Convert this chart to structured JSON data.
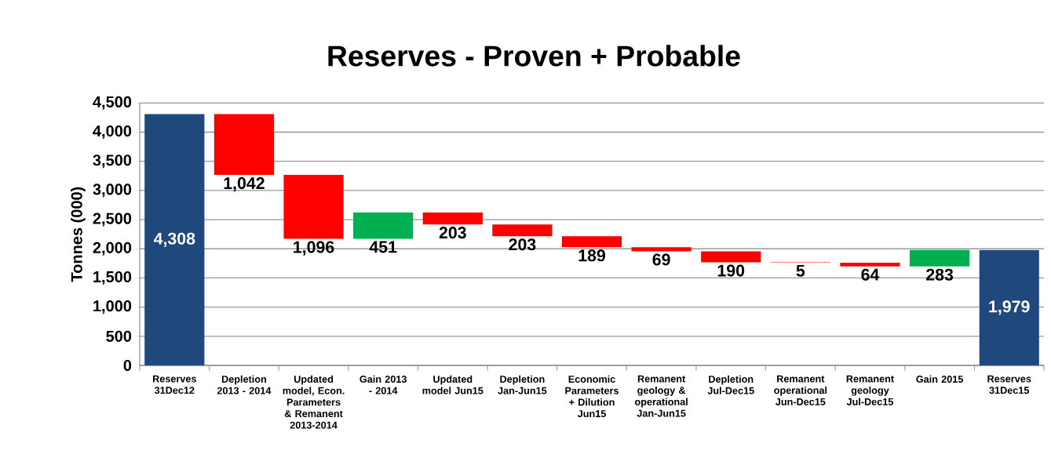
{
  "chart_data": {
    "type": "bar",
    "title": "Reserves - Proven + Probable",
    "ylabel": "Tonnes (000)",
    "categories": [
      "Reserves 31Dec12",
      "Depletion 2013 - 2014",
      "Updated model, Econ. Parameters & Remanent 2013-2014",
      "Gain 2013 - 2014",
      "Updated model Jun15",
      "Depletion Jan-Jun15",
      "Economic Parameters + Dilution Jun15",
      "Remanent geology & operational Jan-Jun15",
      "Depletion Jul-Dec15",
      "Remanent operational Jun-Dec15",
      "Remanent geology Jul-Dec15",
      "Gain 2015",
      "Reserves 31Dec15"
    ],
    "values": [
      4308,
      -1042,
      -1096,
      451,
      -203,
      -203,
      -189,
      -69,
      -190,
      -5,
      -64,
      283,
      1979
    ],
    "base": [
      0,
      4308,
      3266,
      2170,
      2621,
      2418,
      2215,
      2026,
      1957,
      1767,
      1762,
      1698,
      0
    ],
    "value_labels": [
      "4,308",
      "1,042",
      "1,096",
      "451",
      "203",
      "203",
      "189",
      "69",
      "190",
      "5",
      "64",
      "283",
      "1,979"
    ],
    "colors": [
      "#1f497d",
      "#ff0000",
      "#ff0000",
      "#00b050",
      "#ff0000",
      "#ff0000",
      "#ff0000",
      "#ff0000",
      "#ff0000",
      "#ff0000",
      "#ff0000",
      "#00b050",
      "#1f497d"
    ],
    "ylim": [
      0,
      4500
    ],
    "yticks": [
      0,
      500,
      {
        "value": 1000,
        "label": "1,000"
      },
      {
        "value": 1500,
        "label": "1,500"
      },
      {
        "value": 2000,
        "label": "2,000"
      },
      {
        "value": 2500,
        "label": "2,500"
      },
      {
        "value": 3000,
        "label": "3,000"
      },
      {
        "value": 3500,
        "label": "3,500"
      },
      {
        "value": 4000,
        "label": "4,000"
      },
      {
        "value": 4500,
        "label": "4,500"
      }
    ],
    "grid": "y"
  }
}
